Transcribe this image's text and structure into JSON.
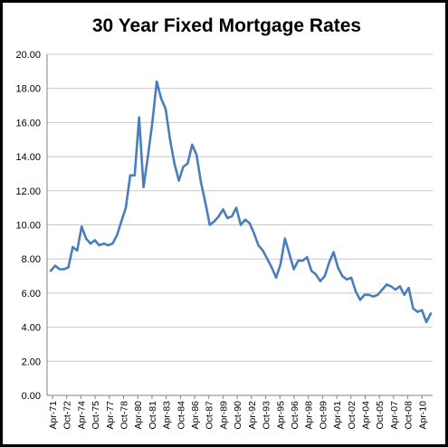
{
  "chart_data": {
    "type": "line",
    "title": "30 Year Fixed Mortgage Rates",
    "xlabel": "",
    "ylabel": "",
    "ylim": [
      0,
      20
    ],
    "yticks": [
      "0.00",
      "2.00",
      "4.00",
      "6.00",
      "8.00",
      "10.00",
      "12.00",
      "14.00",
      "16.00",
      "18.00",
      "20.00"
    ],
    "xticks": [
      "Apr-71",
      "Oct-72",
      "Apr-74",
      "Oct-75",
      "Apr-77",
      "Oct-78",
      "Apr-80",
      "Oct-81",
      "Apr-83",
      "Oct-84",
      "Apr-86",
      "Oct-87",
      "Apr-89",
      "Oct-90",
      "Apr-92",
      "Oct-93",
      "Apr-95",
      "Oct-96",
      "Apr-98",
      "Oct-99",
      "Apr-01",
      "Oct-02",
      "Apr-04",
      "Oct-05",
      "Apr-07",
      "Oct-08",
      "Apr-10"
    ],
    "grid": true,
    "legend": "none",
    "colors": {
      "line": "#4a7ebb",
      "grid": "#c8c8c8",
      "axis": "#808080"
    },
    "series": [
      {
        "x": [
          "Apr-71",
          "Oct-71",
          "Apr-72",
          "Oct-72",
          "Apr-73",
          "Oct-73",
          "Feb-74",
          "Jun-74",
          "Oct-74",
          "Apr-75",
          "Oct-75",
          "Apr-76",
          "Oct-76",
          "Apr-77",
          "Oct-77",
          "Apr-78",
          "Oct-78",
          "Apr-79",
          "Oct-79",
          "Jan-80",
          "Apr-80",
          "Jun-80",
          "Oct-80",
          "Apr-81",
          "Oct-81",
          "Jan-82",
          "Apr-82",
          "Jul-82",
          "Oct-82",
          "Apr-83",
          "Oct-83",
          "Apr-84",
          "Jul-84",
          "Oct-84",
          "Apr-85",
          "Oct-85",
          "Apr-86",
          "Oct-86",
          "Apr-87",
          "Oct-87",
          "Apr-88",
          "Oct-88",
          "Apr-89",
          "Oct-89",
          "Apr-90",
          "Oct-90",
          "Apr-91",
          "Oct-91",
          "Apr-92",
          "Oct-92",
          "Apr-93",
          "Oct-93",
          "Apr-94",
          "Dec-94",
          "Apr-95",
          "Oct-95",
          "Apr-96",
          "Oct-96",
          "Apr-97",
          "Oct-97",
          "Apr-98",
          "Oct-98",
          "Apr-99",
          "Oct-99",
          "Apr-00",
          "Oct-00",
          "Apr-01",
          "Oct-01",
          "Apr-02",
          "Oct-02",
          "Apr-03",
          "Oct-03",
          "Apr-04",
          "Oct-04",
          "Apr-05",
          "Oct-05",
          "Apr-06",
          "Oct-06",
          "Apr-07",
          "Oct-07",
          "Apr-08",
          "Oct-08",
          "Apr-09",
          "Oct-09",
          "Apr-10",
          "Oct-10",
          "Apr-11"
        ],
        "values": [
          7.3,
          7.6,
          7.4,
          7.4,
          7.5,
          8.7,
          8.5,
          9.9,
          9.2,
          8.9,
          9.1,
          8.8,
          8.9,
          8.8,
          8.9,
          9.4,
          10.2,
          11.0,
          12.9,
          12.9,
          16.3,
          12.2,
          14.0,
          16.0,
          18.4,
          17.4,
          16.8,
          15.0,
          13.6,
          12.6,
          13.4,
          13.6,
          14.7,
          14.1,
          12.5,
          11.3,
          10.0,
          10.2,
          10.5,
          10.9,
          10.4,
          10.5,
          11.0,
          10.0,
          10.3,
          10.1,
          9.5,
          8.8,
          8.5,
          8.0,
          7.5,
          6.9,
          7.7,
          9.2,
          8.3,
          7.4,
          7.9,
          7.9,
          8.1,
          7.3,
          7.1,
          6.7,
          7.0,
          7.8,
          8.4,
          7.5,
          7.0,
          6.8,
          6.9,
          6.1,
          5.6,
          5.9,
          5.9,
          5.8,
          5.9,
          6.2,
          6.5,
          6.4,
          6.2,
          6.4,
          5.9,
          6.3,
          5.1,
          4.9,
          5.0,
          4.3,
          4.8
        ]
      }
    ]
  }
}
